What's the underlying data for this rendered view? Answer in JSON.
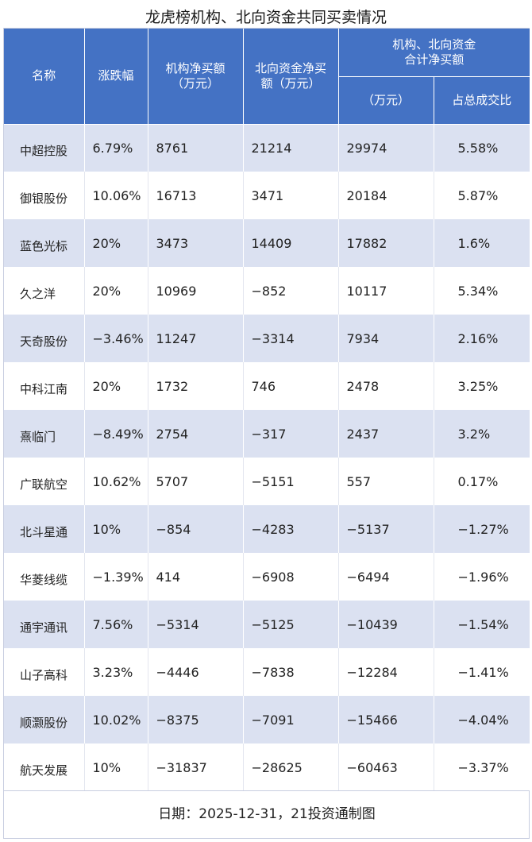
{
  "title": "龙虎榜机构、北向资金共同买卖情况",
  "header": {
    "name": "名称",
    "change": "涨跌幅",
    "inst_net_line1": "机构净买额",
    "inst_net_line2": "（万元）",
    "north_net_line1": "北向资金净买",
    "north_net_line2": "额（万元）",
    "combined_line1": "机构、北向资金",
    "combined_line2": "合计净买额",
    "combined_amount": "（万元）",
    "combined_ratio": "占总成交比"
  },
  "rows": [
    {
      "name": "中超控股",
      "change": "6.79%",
      "inst": "8761",
      "north": "21214",
      "total": "29974",
      "ratio": "5.58%"
    },
    {
      "name": "御银股份",
      "change": "10.06%",
      "inst": "16713",
      "north": "3471",
      "total": "20184",
      "ratio": "5.87%"
    },
    {
      "name": "蓝色光标",
      "change": "20%",
      "inst": "3473",
      "north": "14409",
      "total": "17882",
      "ratio": "1.6%"
    },
    {
      "name": "久之洋",
      "change": "20%",
      "inst": "10969",
      "north": "−852",
      "total": "10117",
      "ratio": "5.34%"
    },
    {
      "name": "天奇股份",
      "change": "−3.46%",
      "inst": "11247",
      "north": "−3314",
      "total": "7934",
      "ratio": "2.16%"
    },
    {
      "name": "中科江南",
      "change": "20%",
      "inst": "1732",
      "north": "746",
      "total": "2478",
      "ratio": "3.25%"
    },
    {
      "name": "熹临门",
      "change": "−8.49%",
      "inst": "2754",
      "north": "−317",
      "total": "2437",
      "ratio": "3.2%"
    },
    {
      "name": "广联航空",
      "change": "10.62%",
      "inst": "5707",
      "north": "−5151",
      "total": "557",
      "ratio": "0.17%"
    },
    {
      "name": "北斗星通",
      "change": "10%",
      "inst": "−854",
      "north": "−4283",
      "total": "−5137",
      "ratio": "−1.27%"
    },
    {
      "name": "华菱线缆",
      "change": "−1.39%",
      "inst": "414",
      "north": "−6908",
      "total": "−6494",
      "ratio": "−1.96%"
    },
    {
      "name": "通宇通讯",
      "change": "7.56%",
      "inst": "−5314",
      "north": "−5125",
      "total": "−10439",
      "ratio": "−1.54%"
    },
    {
      "name": "山子高科",
      "change": "3.23%",
      "inst": "−4446",
      "north": "−7838",
      "total": "−12284",
      "ratio": "−1.41%"
    },
    {
      "name": "顺灏股份",
      "change": "10.02%",
      "inst": "−8375",
      "north": "−7091",
      "total": "−15466",
      "ratio": "−4.04%"
    },
    {
      "name": "航天发展",
      "change": "10%",
      "inst": "−31837",
      "north": "−28625",
      "total": "−60463",
      "ratio": "−3.37%"
    }
  ],
  "footer": "日期：2025-12-31，21投资通制图",
  "colors": {
    "header_bg": "#4472c4",
    "band_bg": "#dbe1f1"
  }
}
